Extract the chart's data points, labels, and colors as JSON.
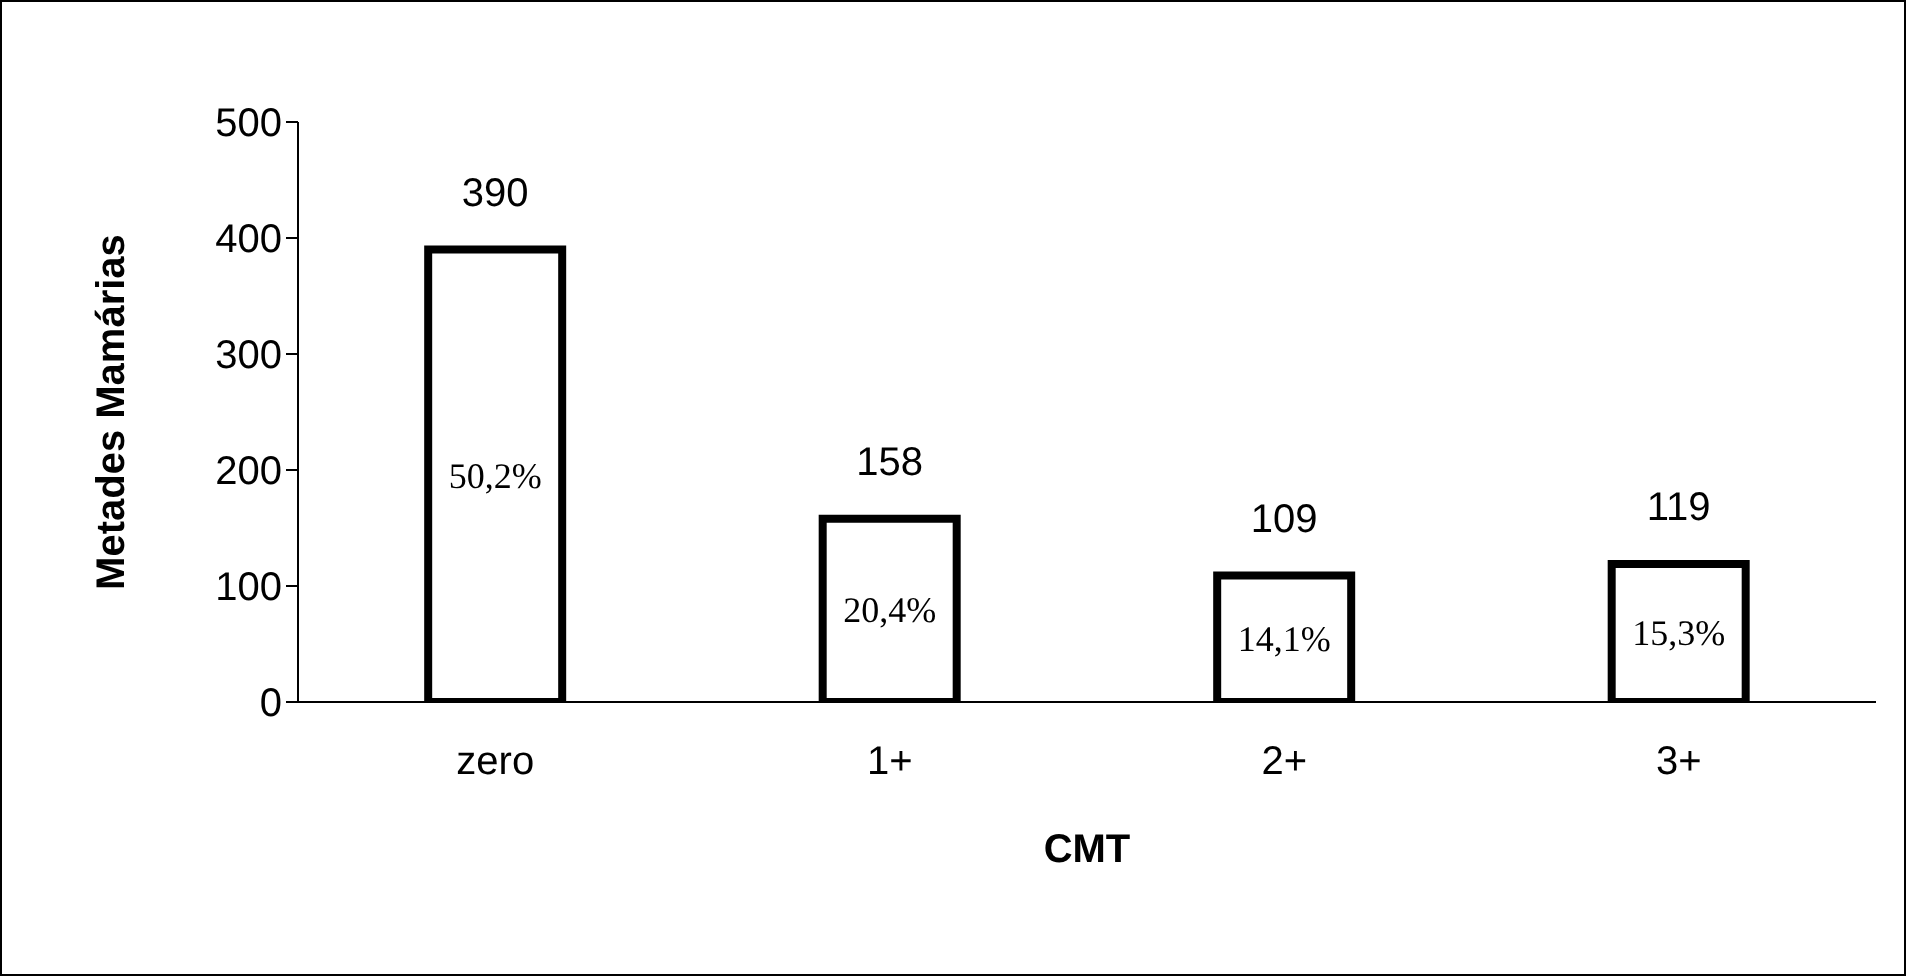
{
  "chart_data": {
    "type": "bar",
    "xlabel": "CMT",
    "ylabel": "Metades Mamárias",
    "categories": [
      "zero",
      "1+",
      "2+",
      "3+"
    ],
    "values": [
      390,
      158,
      109,
      119
    ],
    "color": "#ffffff",
    "ylim": [
      0,
      500
    ],
    "yticks": [
      0,
      100,
      200,
      300,
      400,
      500
    ],
    "data_labels": true,
    "grid": false,
    "legend": false,
    "annotations": [
      "50,2%",
      "20,4%",
      "14,1%",
      "15,3%"
    ]
  }
}
